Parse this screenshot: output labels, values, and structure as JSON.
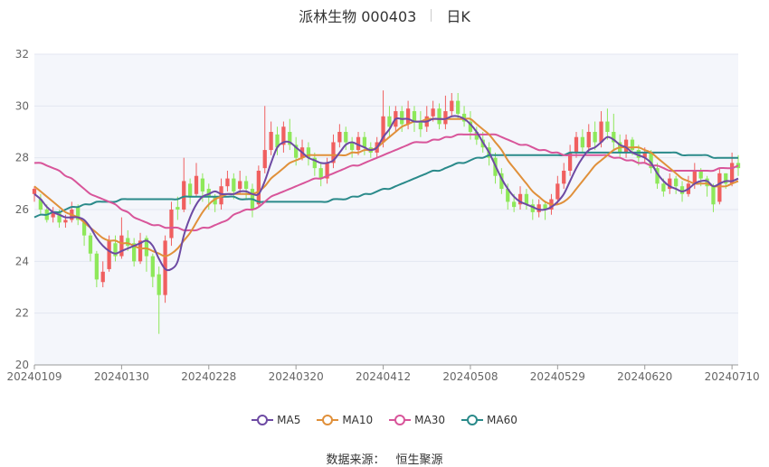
{
  "header": {
    "stock": "派林生物 000403",
    "period": "日K"
  },
  "source": {
    "label": "数据来源：",
    "value": "恒生聚源"
  },
  "colors": {
    "up": "#f05f5f",
    "down": "#8ee85a",
    "ma5": "#6d4aa3",
    "ma10": "#e0903a",
    "ma30": "#d8559a",
    "ma60": "#2a8a8a",
    "grid": "#e3e7f0",
    "plot_bg": "#f4f6fb"
  },
  "chart_data": {
    "type": "candlestick",
    "ylim": [
      20,
      32
    ],
    "yticks": [
      20,
      22,
      24,
      26,
      28,
      30,
      32
    ],
    "x_tick_labels": [
      "20240109",
      "20240130",
      "20240228",
      "20240320",
      "20240412",
      "20240508",
      "20240529",
      "20240620",
      "20240710"
    ],
    "x_tick_index": [
      0,
      14,
      28,
      42,
      56,
      70,
      84,
      98,
      112
    ],
    "legend": [
      "MA5",
      "MA10",
      "MA30",
      "MA60"
    ],
    "candles": [
      [
        26.6,
        26.8,
        26.3,
        26.9
      ],
      [
        26.4,
        26.0,
        25.8,
        26.6
      ],
      [
        26.0,
        25.6,
        25.5,
        26.2
      ],
      [
        25.7,
        25.9,
        25.5,
        26.1
      ],
      [
        25.9,
        25.5,
        25.3,
        26.0
      ],
      [
        25.5,
        25.6,
        25.3,
        25.8
      ],
      [
        25.6,
        26.0,
        25.5,
        26.3
      ],
      [
        26.1,
        25.6,
        25.4,
        26.2
      ],
      [
        25.5,
        25.0,
        24.6,
        25.6
      ],
      [
        25.0,
        24.3,
        24.0,
        25.1
      ],
      [
        24.3,
        23.3,
        23.0,
        24.4
      ],
      [
        23.2,
        23.6,
        23.0,
        24.0
      ],
      [
        23.7,
        24.8,
        23.6,
        25.0
      ],
      [
        24.7,
        24.2,
        24.0,
        25.0
      ],
      [
        24.2,
        25.0,
        24.1,
        25.7
      ],
      [
        24.9,
        24.6,
        24.4,
        25.2
      ],
      [
        24.7,
        24.0,
        23.8,
        24.9
      ],
      [
        24.0,
        24.8,
        23.9,
        25.1
      ],
      [
        24.9,
        24.2,
        23.6,
        25.0
      ],
      [
        24.2,
        23.4,
        23.0,
        24.3
      ],
      [
        23.5,
        22.7,
        21.2,
        23.8
      ],
      [
        22.7,
        24.8,
        22.4,
        25.0
      ],
      [
        24.9,
        26.0,
        24.6,
        26.3
      ],
      [
        26.1,
        26.0,
        25.6,
        26.5
      ],
      [
        26.0,
        27.1,
        25.9,
        28.0
      ],
      [
        27.0,
        26.5,
        26.2,
        27.2
      ],
      [
        26.6,
        27.3,
        26.5,
        27.8
      ],
      [
        27.2,
        26.7,
        26.3,
        27.4
      ],
      [
        26.8,
        26.5,
        26.0,
        27.0
      ],
      [
        26.5,
        26.2,
        25.9,
        26.6
      ],
      [
        26.2,
        26.9,
        26.0,
        27.2
      ],
      [
        26.9,
        27.2,
        26.7,
        27.5
      ],
      [
        27.2,
        26.7,
        26.4,
        27.4
      ],
      [
        26.8,
        27.1,
        26.6,
        27.5
      ],
      [
        27.1,
        26.8,
        26.4,
        27.3
      ],
      [
        26.8,
        26.0,
        25.7,
        27.0
      ],
      [
        26.2,
        27.5,
        26.1,
        27.7
      ],
      [
        27.6,
        28.3,
        27.4,
        30.0
      ],
      [
        28.3,
        29.0,
        28.1,
        29.4
      ],
      [
        28.9,
        28.4,
        28.1,
        29.2
      ],
      [
        28.5,
        29.2,
        28.2,
        29.4
      ],
      [
        29.0,
        28.5,
        28.3,
        29.5
      ],
      [
        28.5,
        28.0,
        27.7,
        28.8
      ],
      [
        28.0,
        28.4,
        27.9,
        28.7
      ],
      [
        28.4,
        28.0,
        27.7,
        28.6
      ],
      [
        28.0,
        27.6,
        27.3,
        28.2
      ],
      [
        27.6,
        27.2,
        26.9,
        27.8
      ],
      [
        27.2,
        27.8,
        27.0,
        28.0
      ],
      [
        27.8,
        28.6,
        27.6,
        28.9
      ],
      [
        28.6,
        29.0,
        28.4,
        29.3
      ],
      [
        29.0,
        28.6,
        28.3,
        29.2
      ],
      [
        28.6,
        28.3,
        28.0,
        28.8
      ],
      [
        28.3,
        28.8,
        28.1,
        29.0
      ],
      [
        28.8,
        28.4,
        28.1,
        29.0
      ],
      [
        28.4,
        28.2,
        28.0,
        28.6
      ],
      [
        28.2,
        28.6,
        28.0,
        28.8
      ],
      [
        28.6,
        29.6,
        28.4,
        30.6
      ],
      [
        29.6,
        29.2,
        28.8,
        30.0
      ],
      [
        29.2,
        29.8,
        29.0,
        30.0
      ],
      [
        29.8,
        29.3,
        29.0,
        30.0
      ],
      [
        29.3,
        29.9,
        29.1,
        30.2
      ],
      [
        29.8,
        29.4,
        29.0,
        30.0
      ],
      [
        29.4,
        29.1,
        28.8,
        29.8
      ],
      [
        29.2,
        29.6,
        29.0,
        30.0
      ],
      [
        29.6,
        29.9,
        29.4,
        30.2
      ],
      [
        29.9,
        29.3,
        29.1,
        30.1
      ],
      [
        29.3,
        29.8,
        29.1,
        30.4
      ],
      [
        29.8,
        30.2,
        29.6,
        30.5
      ],
      [
        30.2,
        29.7,
        29.5,
        30.5
      ],
      [
        29.7,
        29.4,
        29.2,
        30.0
      ],
      [
        29.4,
        29.0,
        28.7,
        29.8
      ],
      [
        29.0,
        28.7,
        28.5,
        29.2
      ],
      [
        28.7,
        28.4,
        28.2,
        29.0
      ],
      [
        28.4,
        28.0,
        27.7,
        28.6
      ],
      [
        28.0,
        27.3,
        27.0,
        28.2
      ],
      [
        27.4,
        26.8,
        26.6,
        27.6
      ],
      [
        26.8,
        26.3,
        26.0,
        27.0
      ],
      [
        26.3,
        26.1,
        25.9,
        26.6
      ],
      [
        26.2,
        26.6,
        26.0,
        26.9
      ],
      [
        26.6,
        26.2,
        26.0,
        26.8
      ],
      [
        26.2,
        25.9,
        25.6,
        26.4
      ],
      [
        25.9,
        26.2,
        25.7,
        26.4
      ],
      [
        26.2,
        26.0,
        25.6,
        26.3
      ],
      [
        26.0,
        26.4,
        25.8,
        26.6
      ],
      [
        26.4,
        27.0,
        26.2,
        27.3
      ],
      [
        27.0,
        27.5,
        26.8,
        27.8
      ],
      [
        27.5,
        28.2,
        27.3,
        28.5
      ],
      [
        28.2,
        28.8,
        28.0,
        29.0
      ],
      [
        28.8,
        28.4,
        28.2,
        29.1
      ],
      [
        28.4,
        29.0,
        28.2,
        29.3
      ],
      [
        29.0,
        28.6,
        28.3,
        29.4
      ],
      [
        28.6,
        29.4,
        28.4,
        29.8
      ],
      [
        29.4,
        29.0,
        28.7,
        29.9
      ],
      [
        29.0,
        28.6,
        28.3,
        29.7
      ],
      [
        28.6,
        28.2,
        28.0,
        28.9
      ],
      [
        28.2,
        28.7,
        28.0,
        28.9
      ],
      [
        28.7,
        28.3,
        28.1,
        28.8
      ],
      [
        28.3,
        28.0,
        27.7,
        28.5
      ],
      [
        28.0,
        28.2,
        27.8,
        28.4
      ],
      [
        28.2,
        27.6,
        27.4,
        28.3
      ],
      [
        27.6,
        27.0,
        26.8,
        27.8
      ],
      [
        27.0,
        26.7,
        26.5,
        27.2
      ],
      [
        26.8,
        27.2,
        26.6,
        27.4
      ],
      [
        27.2,
        26.9,
        26.6,
        27.3
      ],
      [
        26.9,
        26.6,
        26.3,
        27.1
      ],
      [
        26.6,
        27.0,
        26.5,
        27.3
      ],
      [
        27.0,
        27.5,
        26.8,
        27.8
      ],
      [
        27.5,
        27.2,
        26.9,
        27.6
      ],
      [
        27.2,
        26.9,
        26.5,
        27.3
      ],
      [
        26.9,
        26.2,
        25.9,
        27.0
      ],
      [
        26.3,
        27.4,
        26.2,
        27.6
      ],
      [
        27.4,
        27.0,
        26.8,
        27.4
      ],
      [
        27.0,
        27.8,
        26.9,
        28.2
      ],
      [
        27.8,
        27.6,
        27.3,
        28.1
      ]
    ],
    "ma5": [
      26.6,
      26.4,
      26.1,
      25.9,
      25.8,
      25.7,
      25.7,
      25.7,
      25.6,
      25.3,
      24.9,
      24.6,
      24.4,
      24.3,
      24.4,
      24.5,
      24.6,
      24.7,
      24.8,
      24.6,
      24.1,
      23.7,
      23.7,
      24.0,
      25.0,
      25.7,
      26.2,
      26.5,
      26.6,
      26.7,
      26.6,
      26.6,
      26.6,
      26.7,
      26.7,
      26.6,
      26.6,
      27.1,
      27.8,
      28.4,
      28.6,
      28.6,
      28.4,
      28.2,
      28.0,
      27.9,
      27.8,
      27.8,
      27.9,
      28.2,
      28.5,
      28.6,
      28.5,
      28.4,
      28.3,
      28.4,
      28.8,
      29.1,
      29.5,
      29.5,
      29.5,
      29.4,
      29.4,
      29.4,
      29.5,
      29.5,
      29.5,
      29.6,
      29.6,
      29.5,
      29.3,
      29.0,
      28.6,
      28.2,
      27.7,
      27.2,
      26.8,
      26.5,
      26.3,
      26.2,
      26.1,
      26.0,
      26.0,
      26.1,
      26.3,
      26.6,
      27.1,
      27.6,
      28.0,
      28.3,
      28.4,
      28.6,
      28.8,
      28.7,
      28.5,
      28.4,
      28.2,
      28.1,
      28.0,
      27.8,
      27.4,
      27.1,
      26.9,
      26.8,
      26.7,
      26.8,
      27.0,
      27.1,
      27.1,
      26.9,
      27.0,
      27.1,
      27.1,
      27.2
    ],
    "ma10": [
      26.9,
      26.7,
      26.5,
      26.3,
      26.1,
      25.9,
      25.8,
      25.7,
      25.5,
      25.3,
      25.1,
      24.9,
      24.8,
      24.8,
      24.7,
      24.7,
      24.6,
      24.5,
      24.5,
      24.4,
      24.3,
      24.2,
      24.3,
      24.5,
      24.8,
      25.1,
      25.5,
      25.9,
      26.2,
      26.4,
      26.5,
      26.6,
      26.6,
      26.6,
      26.6,
      26.6,
      26.7,
      26.9,
      27.2,
      27.4,
      27.6,
      27.8,
      27.9,
      28.0,
      28.1,
      28.1,
      28.1,
      28.1,
      28.1,
      28.1,
      28.1,
      28.2,
      28.2,
      28.3,
      28.3,
      28.4,
      28.6,
      28.8,
      29.0,
      29.2,
      29.3,
      29.4,
      29.4,
      29.5,
      29.5,
      29.5,
      29.5,
      29.5,
      29.5,
      29.5,
      29.5,
      29.3,
      29.1,
      28.9,
      28.6,
      28.3,
      27.9,
      27.6,
      27.3,
      27.0,
      26.7,
      26.5,
      26.3,
      26.2,
      26.2,
      26.3,
      26.5,
      26.8,
      27.1,
      27.4,
      27.7,
      27.9,
      28.1,
      28.3,
      28.4,
      28.4,
      28.4,
      28.4,
      28.3,
      28.2,
      28.0,
      27.8,
      27.6,
      27.4,
      27.2,
      27.1,
      27.0,
      27.0,
      27.0,
      26.9,
      26.9,
      26.9,
      27.0,
      27.1
    ],
    "ma30": [
      27.8,
      27.8,
      27.7,
      27.6,
      27.5,
      27.3,
      27.2,
      27.0,
      26.8,
      26.6,
      26.5,
      26.4,
      26.3,
      26.2,
      26.0,
      25.9,
      25.7,
      25.6,
      25.5,
      25.4,
      25.4,
      25.3,
      25.3,
      25.3,
      25.2,
      25.2,
      25.2,
      25.3,
      25.3,
      25.4,
      25.5,
      25.6,
      25.8,
      25.9,
      26.0,
      26.0,
      26.1,
      26.3,
      26.5,
      26.6,
      26.7,
      26.8,
      26.9,
      27.0,
      27.1,
      27.2,
      27.2,
      27.3,
      27.4,
      27.5,
      27.6,
      27.7,
      27.7,
      27.8,
      27.9,
      28.0,
      28.1,
      28.2,
      28.3,
      28.4,
      28.5,
      28.6,
      28.6,
      28.6,
      28.7,
      28.7,
      28.8,
      28.8,
      28.9,
      28.9,
      28.9,
      28.9,
      28.9,
      28.9,
      28.9,
      28.8,
      28.7,
      28.6,
      28.5,
      28.5,
      28.4,
      28.3,
      28.3,
      28.2,
      28.2,
      28.1,
      28.1,
      28.1,
      28.1,
      28.1,
      28.1,
      28.1,
      28.1,
      28.0,
      28.0,
      27.9,
      27.9,
      27.8,
      27.8,
      27.7,
      27.7,
      27.6,
      27.5,
      27.5,
      27.5,
      27.5,
      27.5,
      27.5,
      27.5,
      27.5,
      27.6,
      27.6,
      27.6,
      27.7
    ],
    "ma60": [
      25.7,
      25.8,
      25.8,
      25.9,
      25.9,
      26.0,
      26.1,
      26.1,
      26.2,
      26.2,
      26.3,
      26.3,
      26.3,
      26.3,
      26.4,
      26.4,
      26.4,
      26.4,
      26.4,
      26.4,
      26.4,
      26.4,
      26.4,
      26.4,
      26.5,
      26.5,
      26.5,
      26.5,
      26.5,
      26.5,
      26.5,
      26.5,
      26.5,
      26.4,
      26.4,
      26.4,
      26.3,
      26.3,
      26.3,
      26.3,
      26.3,
      26.3,
      26.3,
      26.3,
      26.3,
      26.3,
      26.3,
      26.3,
      26.4,
      26.4,
      26.4,
      26.5,
      26.5,
      26.6,
      26.6,
      26.7,
      26.8,
      26.8,
      26.9,
      27.0,
      27.1,
      27.2,
      27.3,
      27.4,
      27.5,
      27.5,
      27.6,
      27.7,
      27.8,
      27.8,
      27.9,
      28.0,
      28.0,
      28.1,
      28.1,
      28.1,
      28.1,
      28.1,
      28.1,
      28.1,
      28.1,
      28.1,
      28.1,
      28.1,
      28.1,
      28.1,
      28.2,
      28.2,
      28.2,
      28.2,
      28.2,
      28.2,
      28.2,
      28.2,
      28.2,
      28.2,
      28.2,
      28.2,
      28.2,
      28.2,
      28.2,
      28.2,
      28.2,
      28.2,
      28.1,
      28.1,
      28.1,
      28.1,
      28.1,
      28.0,
      28.0,
      28.0,
      28.0,
      28.0
    ]
  }
}
